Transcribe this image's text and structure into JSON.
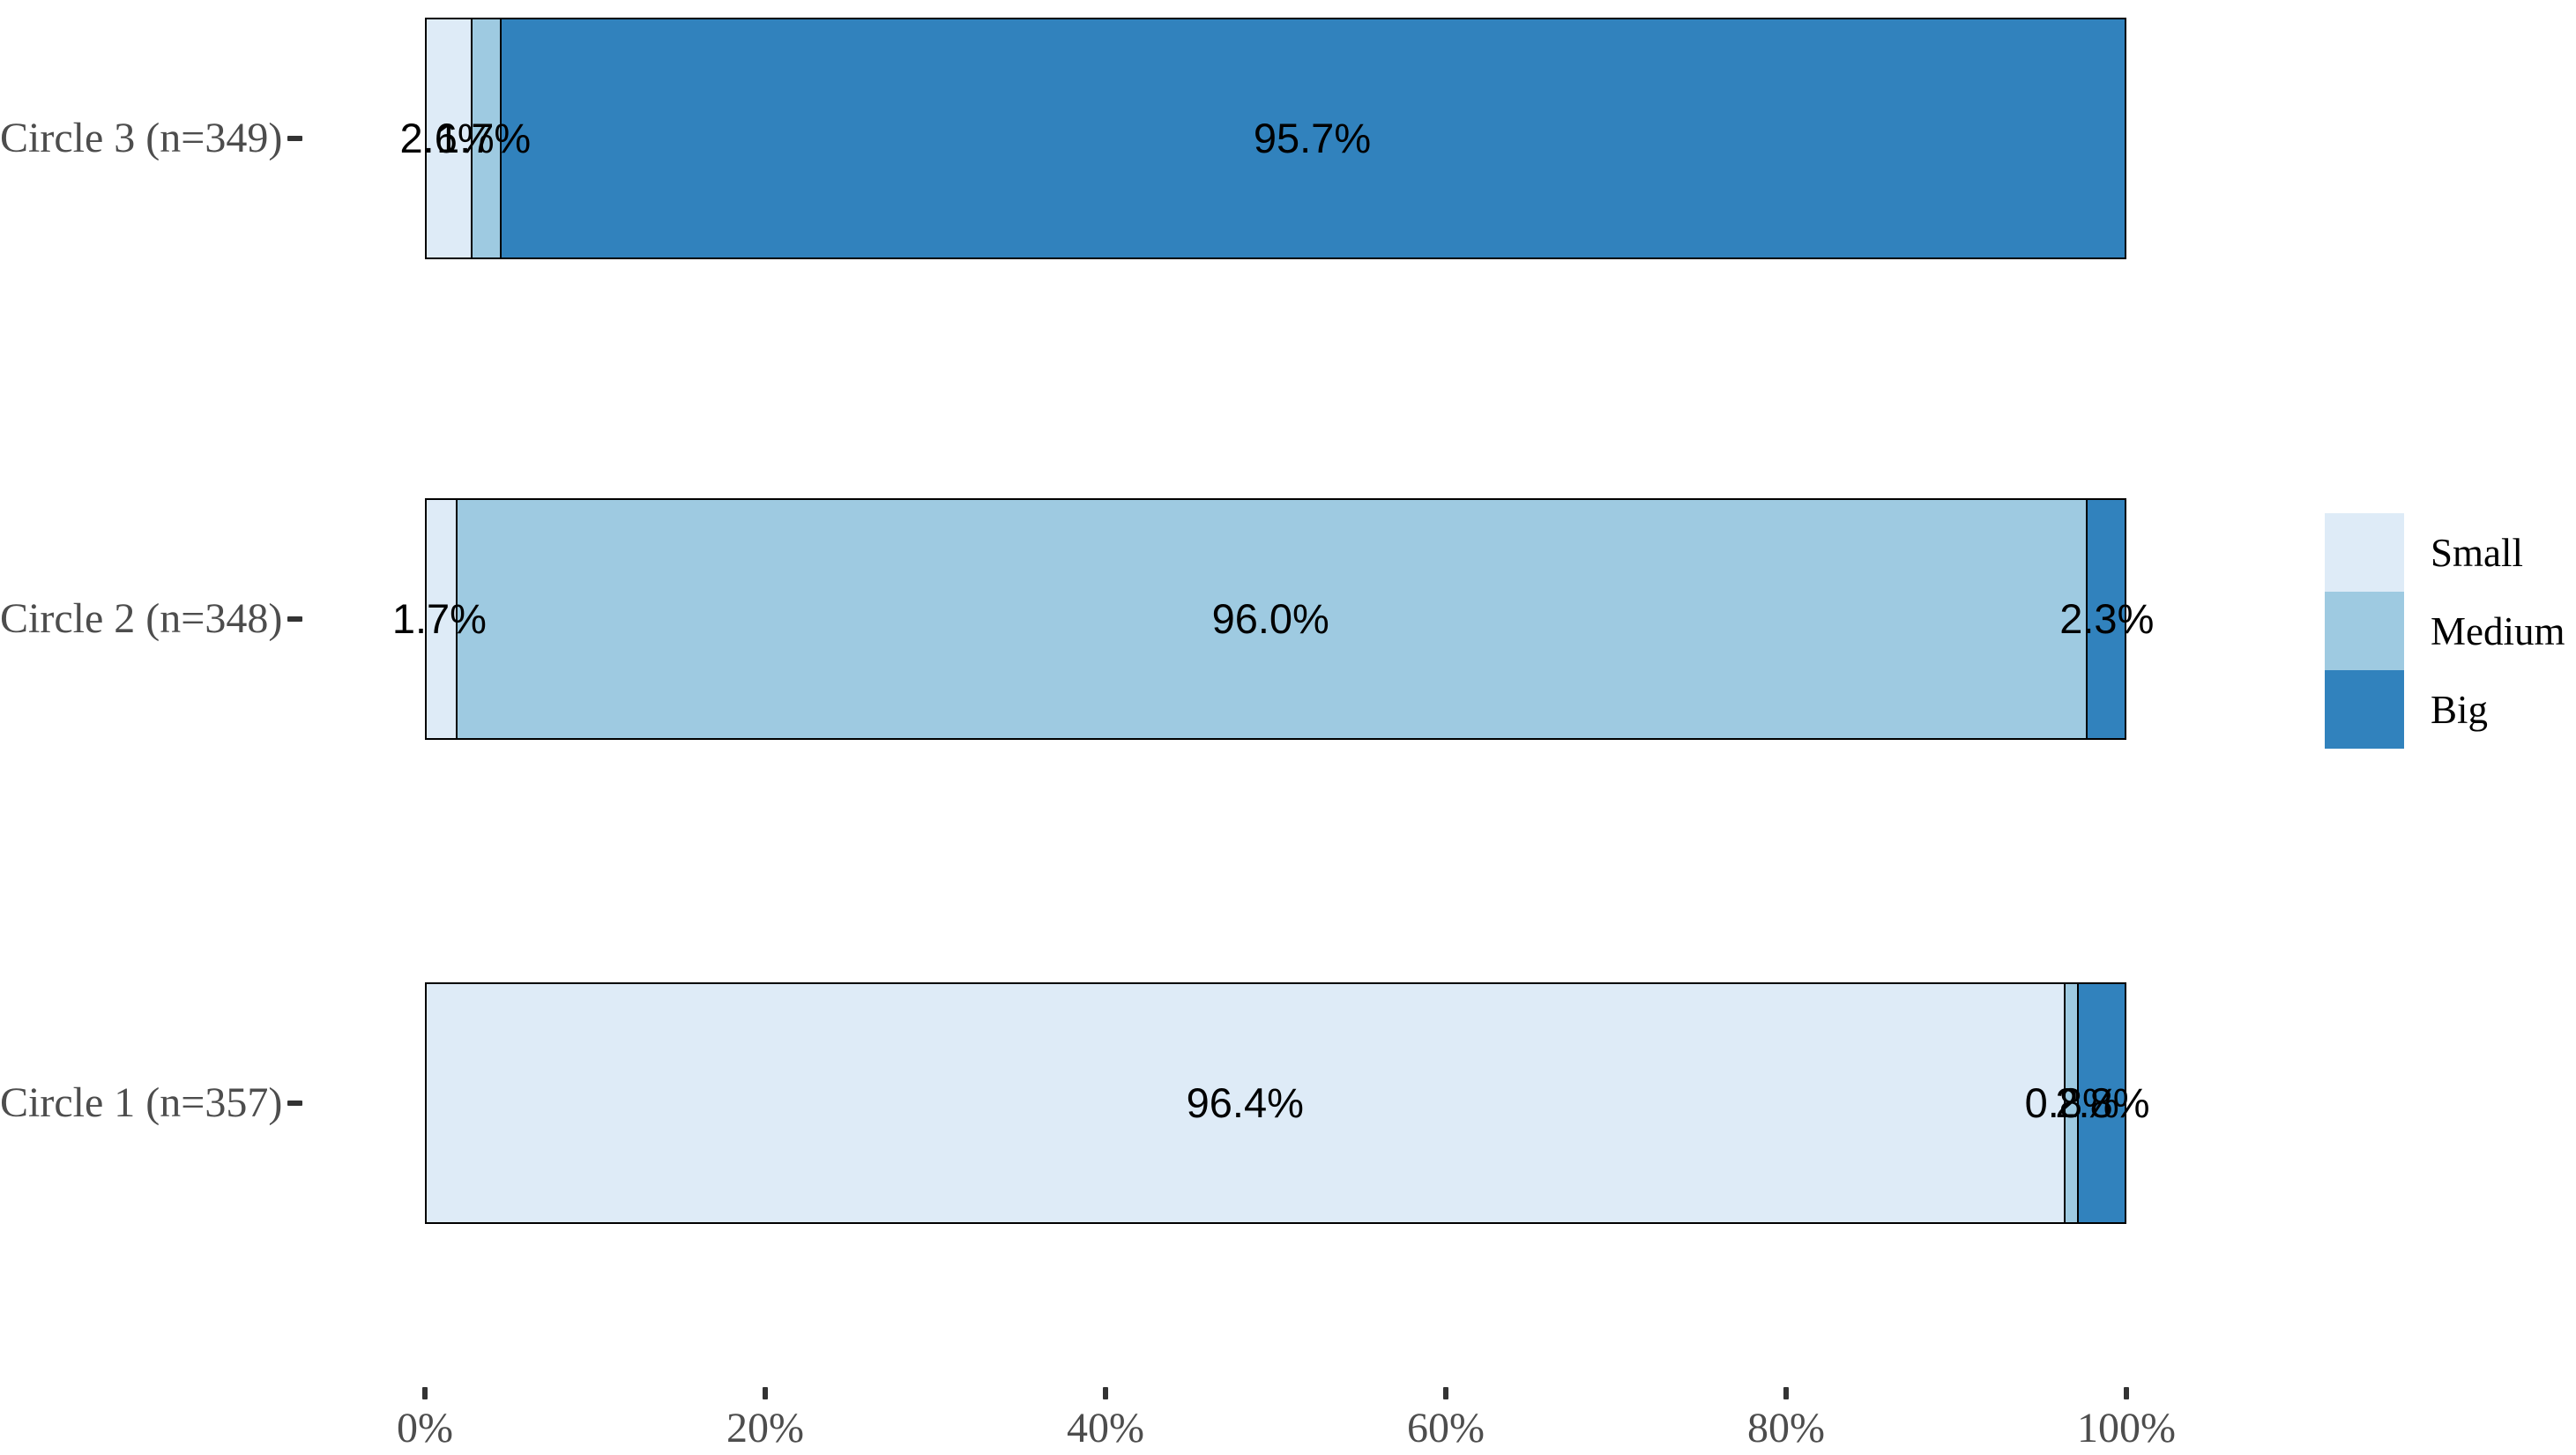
{
  "chart_data": {
    "type": "bar",
    "orientation": "horizontal",
    "stacked": true,
    "unit": "percent",
    "title": "",
    "xlabel": "",
    "ylabel": "",
    "xlim": [
      0,
      100
    ],
    "grid": false,
    "categories": [
      "Circle 3 (n=349)",
      "Circle 2 (n=348)",
      "Circle 1 (n=357)"
    ],
    "series": [
      {
        "name": "Small",
        "color": "#DEEBF7",
        "values": [
          2.6,
          1.7,
          96.4
        ]
      },
      {
        "name": "Medium",
        "color": "#9ECAE1",
        "values": [
          1.7,
          96.0,
          0.8
        ]
      },
      {
        "name": "Big",
        "color": "#3182BD",
        "values": [
          95.7,
          2.3,
          2.8
        ]
      }
    ],
    "value_labels": [
      [
        "2.6%",
        "1.7%",
        "95.7%"
      ],
      [
        "1.7%",
        "96.0%",
        "2.3%"
      ],
      [
        "96.4%",
        "0.8%",
        "2.8%"
      ]
    ],
    "x_tick_labels": [
      "0%",
      "20%",
      "40%",
      "60%",
      "80%",
      "100%"
    ],
    "legend": {
      "position": "right",
      "entries": [
        "Small",
        "Medium",
        "Big"
      ]
    }
  },
  "colors": {
    "small": "#DEEBF7",
    "medium": "#9ECAE1",
    "big": "#3182BD",
    "axis_text": "#4d4d4d",
    "tick_mark": "#333333",
    "bar_border": "#000000",
    "value_text": "#000000",
    "background": "#ffffff"
  }
}
